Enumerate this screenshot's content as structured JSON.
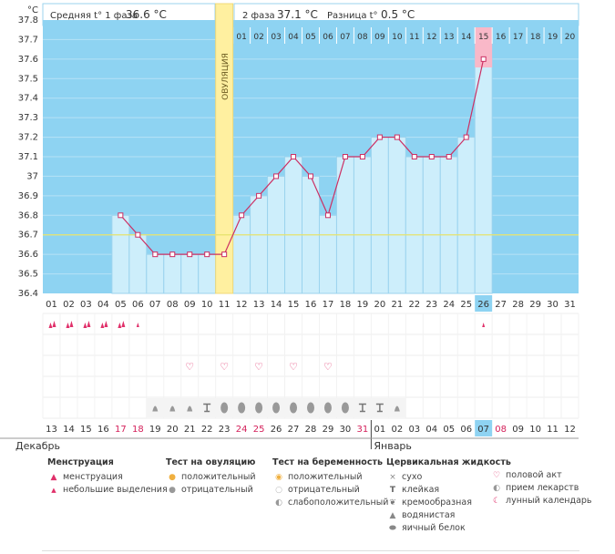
{
  "header": {
    "phase1_label": "Средняя t° 1 фаза",
    "phase1_value": "36.6 °C",
    "phase2_label": "2 фаза",
    "phase2_value": "37.1 °C",
    "diff_label": "Разница t°",
    "diff_value": "0.5 °C",
    "unit": "°C"
  },
  "chart_data": {
    "type": "line",
    "title": "",
    "xlabel": "",
    "ylabel": "°C",
    "ylim": [
      36.4,
      37.8
    ],
    "y_ticks": [
      "36.4",
      "36.5",
      "36.6",
      "36.7",
      "36.8",
      "36.9",
      "37",
      "37.1",
      "37.2",
      "37.3",
      "37.4",
      "37.5",
      "37.6",
      "37.7",
      "37.8"
    ],
    "cycle_days": [
      "01",
      "02",
      "03",
      "04",
      "05",
      "06",
      "07",
      "08",
      "09",
      "10",
      "11",
      "12",
      "13",
      "14",
      "15",
      "16",
      "17",
      "18",
      "19",
      "20",
      "21",
      "22",
      "23",
      "24",
      "25",
      "26",
      "27",
      "28",
      "29",
      "30",
      "31"
    ],
    "dates": [
      "13",
      "14",
      "15",
      "16",
      "17",
      "18",
      "19",
      "20",
      "21",
      "22",
      "23",
      "24",
      "25",
      "26",
      "27",
      "28",
      "29",
      "30",
      "31",
      "01",
      "02",
      "03",
      "04",
      "05",
      "06",
      "07",
      "08",
      "09",
      "10",
      "11",
      "12"
    ],
    "red_dates": [
      4,
      5,
      11,
      12,
      18,
      26
    ],
    "highlight_index": 25,
    "phase2_days": [
      "01",
      "02",
      "03",
      "04",
      "05",
      "06",
      "07",
      "08",
      "09",
      "10",
      "11",
      "12",
      "13",
      "14",
      "15",
      "16",
      "17",
      "18",
      "19",
      "20"
    ],
    "phase2_highlight": 14,
    "temperatures": [
      null,
      null,
      null,
      null,
      36.8,
      36.7,
      36.6,
      36.6,
      36.6,
      36.6,
      36.6,
      36.8,
      36.9,
      37.0,
      37.1,
      37.0,
      36.8,
      37.1,
      37.1,
      37.2,
      37.2,
      37.1,
      37.1,
      37.1,
      37.2,
      37.6,
      null,
      null,
      null,
      null,
      null
    ],
    "coverline": 36.7,
    "ovulation_index": 10,
    "ovulation_label": "ОВУЛЯЦИЯ",
    "months": [
      "Декабрь",
      "Январь"
    ],
    "menstruation_row": [
      "big",
      "big",
      "big",
      "big",
      "big",
      "small",
      "",
      "",
      "",
      "",
      "",
      "",
      "",
      "",
      "",
      "",
      "",
      "",
      "",
      "",
      "",
      "",
      "",
      "",
      "",
      "small",
      "",
      "",
      "",
      "",
      ""
    ],
    "intercourse_row": [
      "",
      "",
      "",
      "",
      "",
      "",
      "",
      "",
      "x",
      "",
      "x",
      "",
      "x",
      "",
      "x",
      "",
      "x",
      "",
      "",
      "",
      "",
      "",
      "",
      "",
      "",
      "",
      "",
      "",
      "",
      "",
      ""
    ],
    "cervical_row": [
      "",
      "",
      "",
      "",
      "",
      "",
      "drop",
      "drop",
      "drop",
      "sticky",
      "egg",
      "egg",
      "egg",
      "egg",
      "egg",
      "egg",
      "egg",
      "egg",
      "sticky",
      "sticky",
      "drop",
      "",
      "",
      "",
      "",
      "",
      "",
      "",
      "",
      "",
      ""
    ]
  },
  "legend": {
    "menstruation": {
      "title": "Менструация",
      "items": [
        "менструация",
        "небольшие выделения"
      ]
    },
    "ovulation_test": {
      "title": "Тест на овуляцию",
      "items": [
        "положительный",
        "отрицательный"
      ]
    },
    "pregnancy_test": {
      "title": "Тест на беременность",
      "items": [
        "положительный",
        "отрицательный",
        "слабоположительный"
      ]
    },
    "cervical": {
      "title": "Цервикальная жидкость",
      "items": [
        "сухо",
        "клейкая",
        "кремообразная",
        "водянистая",
        "яичный белок"
      ]
    },
    "other": {
      "items": [
        "половой акт",
        "прием лекарств",
        "лунный календарь"
      ]
    }
  },
  "colors": {
    "sky": "#8ed3f2",
    "bar_fill": "#cdeefb",
    "bar_stroke": "#9bd3ee",
    "line": "#cc2f63",
    "ovulation": "#fff0a0",
    "ovulation_top": "#f7e391",
    "highlight": "#f9b8c8",
    "cycle_bar": "#8ed3f2",
    "coverline": "#e6e36c",
    "red_text": "#d4205a"
  }
}
